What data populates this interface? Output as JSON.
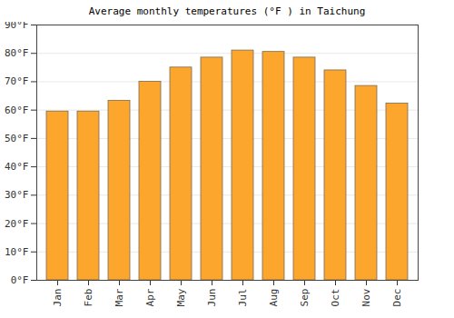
{
  "chart_data": {
    "type": "bar",
    "title": "Average monthly temperatures (°F ) in Taichung",
    "categories": [
      "Jan",
      "Feb",
      "Mar",
      "Apr",
      "May",
      "Jun",
      "Jul",
      "Aug",
      "Sep",
      "Oct",
      "Nov",
      "Dec"
    ],
    "values": [
      59.5,
      59.5,
      63.3,
      70,
      75,
      78.5,
      81,
      80.5,
      78.5,
      74,
      68.5,
      62.3
    ],
    "color": "#fca62d",
    "ylim": [
      0,
      90
    ],
    "yticks": [
      {
        "value": 0,
        "label": "0°F"
      },
      {
        "value": 10,
        "label": "10°F"
      },
      {
        "value": 20,
        "label": "20°F"
      },
      {
        "value": 30,
        "label": "30°F"
      },
      {
        "value": 40,
        "label": "40°F"
      },
      {
        "value": 50,
        "label": "50°F"
      },
      {
        "value": 60,
        "label": "60°F"
      },
      {
        "value": 70,
        "label": "70°F"
      },
      {
        "value": 80,
        "label": "80°F"
      },
      {
        "value": 90,
        "label": "90°F"
      }
    ],
    "grid": true
  }
}
